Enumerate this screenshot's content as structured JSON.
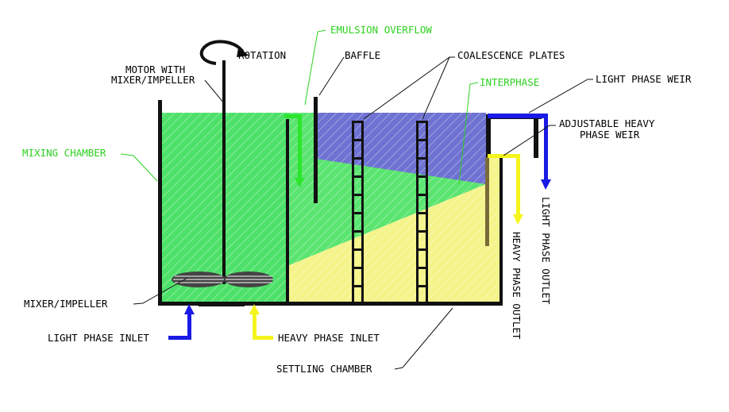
{
  "labels": {
    "rotation": "ROTATION",
    "motor_line1": "MOTOR WITH",
    "motor_line2": "MIXER/IMPELLER",
    "emulsion_overflow": "EMULSION OVERFLOW",
    "baffle": "BAFFLE",
    "coalescence_plates": "COALESCENCE PLATES",
    "interphase": "INTERPHASE",
    "light_phase_weir": "LIGHT PHASE WEIR",
    "adjustable_line1": "ADJUSTABLE HEAVY",
    "adjustable_line2": "PHASE WEIR",
    "mixing_chamber": "MIXING CHAMBER",
    "mixer_impeller": "MIXER/IMPELLER",
    "light_phase_inlet": "LIGHT PHASE INLET",
    "heavy_phase_inlet": "HEAVY PHASE INLET",
    "settling_chamber": "SETTLING CHAMBER",
    "heavy_phase_outlet": "HEAVY PHASE OUTLET",
    "light_phase_outlet": "LIGHT PHASE OUTLET"
  },
  "colors": {
    "mixing_green": "#4ee16a",
    "settle_green": "#5ae470",
    "light_phase_blue": "#6e72d2",
    "heavy_phase_yellow": "#f4f48a",
    "label_green": "#2dd11f",
    "arrow_green": "#2be62b",
    "arrow_blue": "#1a1ae6",
    "arrow_yellow": "#f5f51c"
  }
}
